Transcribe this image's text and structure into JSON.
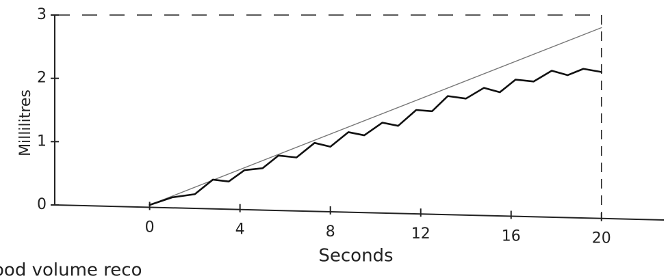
{
  "chart_data": {
    "type": "line",
    "x_label": "Seconds",
    "y_label": "Millilitres",
    "caption": "ood volume reco",
    "xlim": [
      -4.2,
      22.4
    ],
    "ylim": [
      0,
      3
    ],
    "xticks": [
      0,
      4,
      8,
      12,
      16,
      20
    ],
    "yticks": [
      0,
      1,
      2,
      3
    ],
    "series": [
      {
        "color": "#777777",
        "x": [
          0,
          20
        ],
        "values": [
          0,
          2.8
        ]
      },
      {
        "color": "#111111",
        "x": [
          0,
          1,
          2,
          2.8,
          3.5,
          4.2,
          5,
          5.7,
          6.5,
          7.3,
          8,
          8.8,
          9.5,
          10.3,
          11,
          11.8,
          12.5,
          13.2,
          14,
          14.8,
          15.5,
          16.2,
          17,
          17.8,
          18.5,
          19.2,
          20
        ],
        "values": [
          0,
          0.12,
          0.17,
          0.4,
          0.37,
          0.55,
          0.58,
          0.78,
          0.75,
          0.98,
          0.92,
          1.15,
          1.1,
          1.3,
          1.25,
          1.5,
          1.48,
          1.72,
          1.68,
          1.85,
          1.78,
          1.98,
          1.95,
          2.12,
          2.05,
          2.15,
          2.1
        ]
      }
    ]
  }
}
